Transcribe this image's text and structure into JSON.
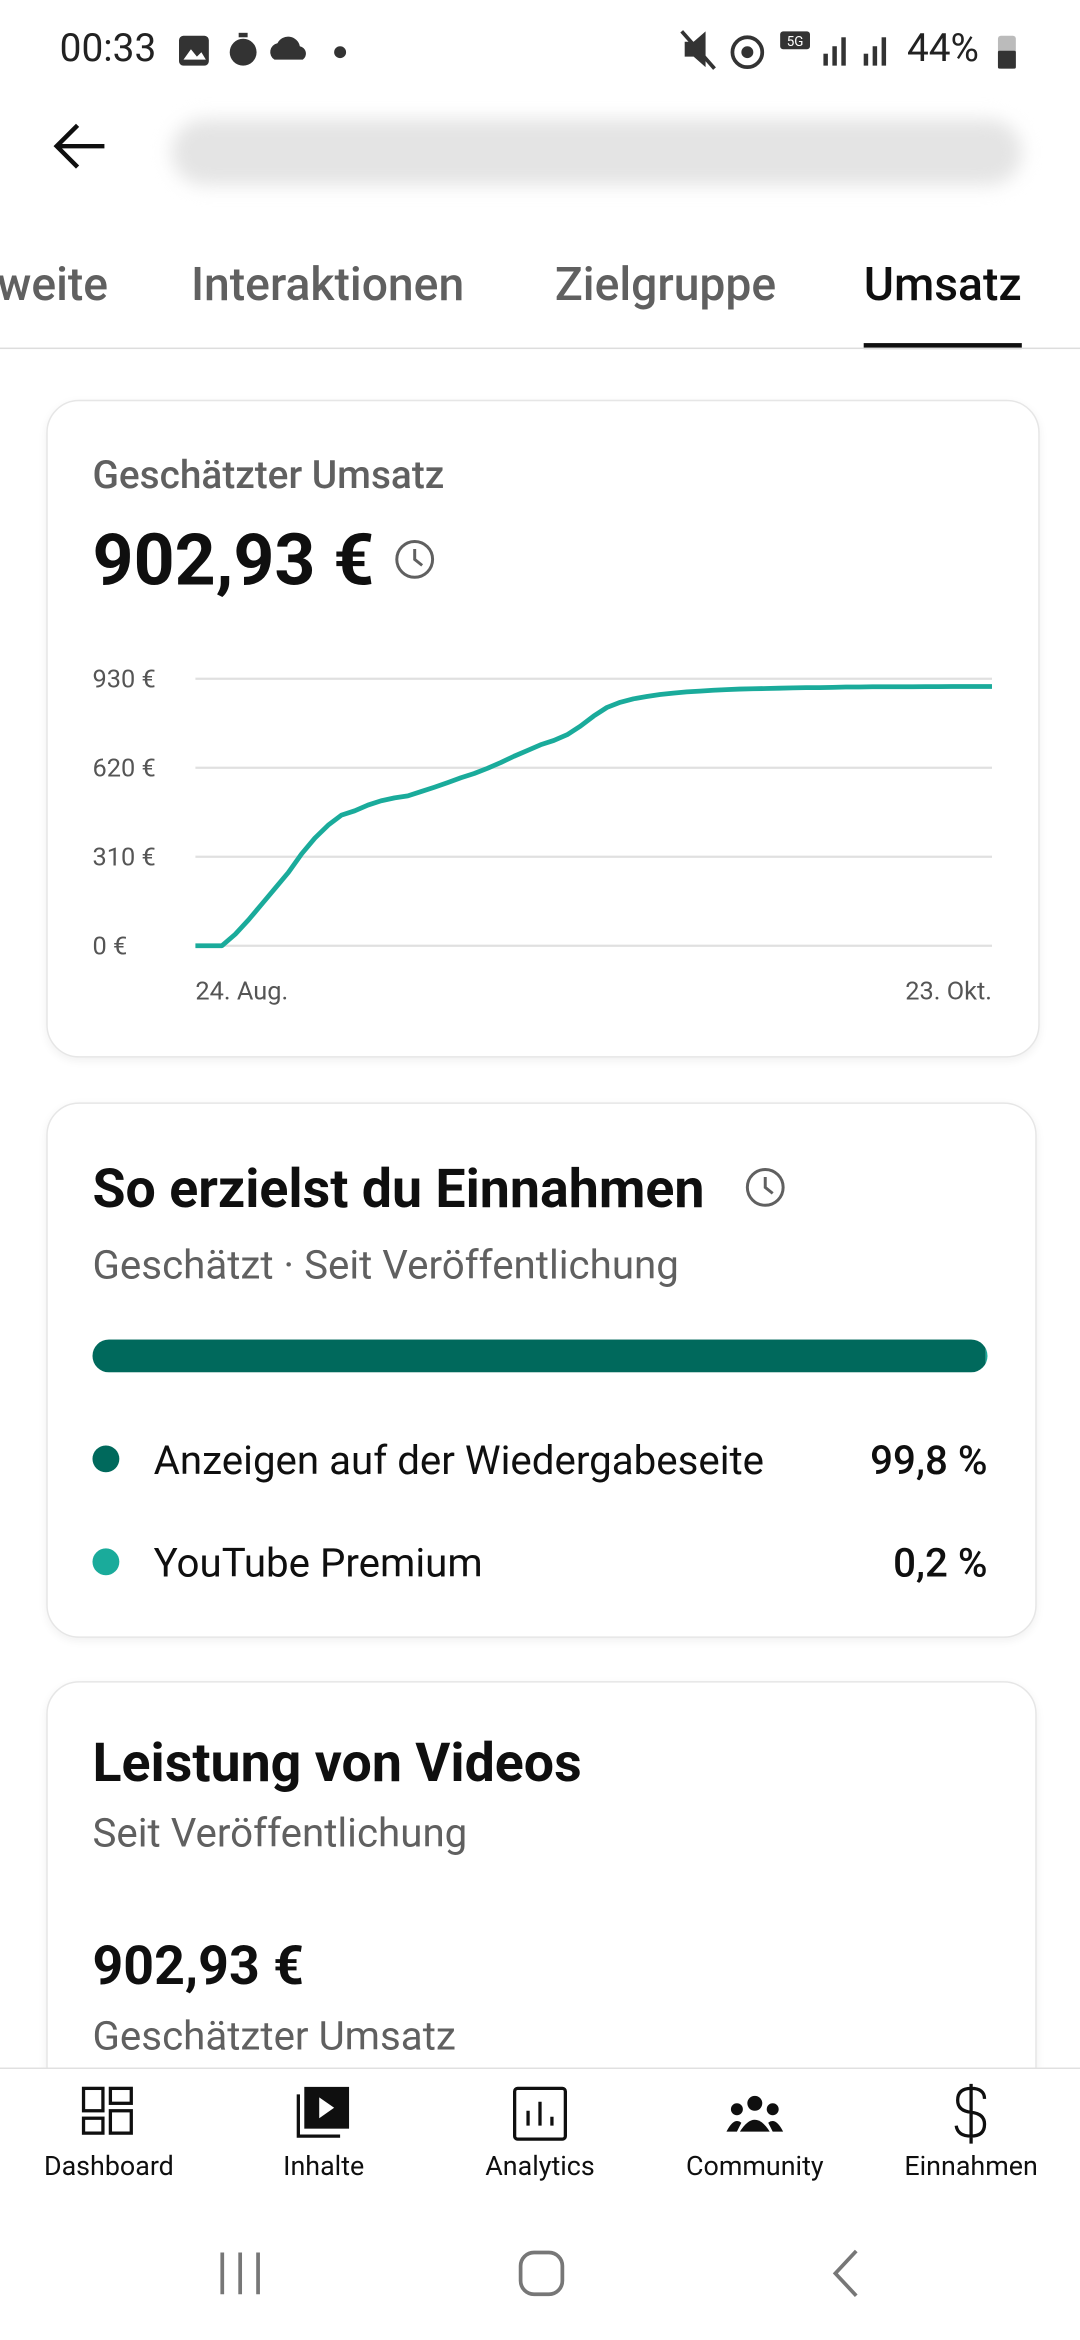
{
  "status_bar": {
    "time": "00:33",
    "battery": "44%"
  },
  "tabs": [
    "weite",
    "Interaktionen",
    "Zielgruppe",
    "Umsatz"
  ],
  "active_tab": 3,
  "revenue_card": {
    "title": "Geschätzter Umsatz",
    "total": "902,93 €",
    "chart": {
      "type": "line",
      "categories": [
        "24. Aug.",
        null,
        null,
        null,
        null,
        null,
        null,
        null,
        null,
        null,
        null,
        null,
        null,
        null,
        null,
        null,
        null,
        null,
        null,
        null,
        null,
        null,
        null,
        null,
        null,
        null,
        null,
        null,
        null,
        null,
        null,
        null,
        null,
        null,
        null,
        null,
        null,
        null,
        null,
        null,
        null,
        null,
        null,
        null,
        null,
        null,
        null,
        null,
        null,
        null,
        null,
        null,
        null,
        null,
        null,
        null,
        null,
        null,
        null,
        null,
        "23. Okt."
      ],
      "values": [
        0,
        0,
        0,
        40,
        90,
        145,
        200,
        255,
        320,
        375,
        420,
        455,
        470,
        490,
        505,
        515,
        522,
        537,
        552,
        568,
        585,
        600,
        618,
        638,
        660,
        680,
        700,
        715,
        735,
        765,
        800,
        830,
        848,
        860,
        868,
        875,
        880,
        884,
        887,
        890,
        892,
        894,
        895,
        896,
        897,
        898,
        899,
        899,
        900,
        901,
        901,
        902,
        902,
        902,
        902,
        902.5,
        902.5,
        902.9,
        902.9,
        902.93,
        902.93
      ],
      "color": "#1aab9b",
      "ylim": [
        0,
        930
      ],
      "yticks": [
        {
          "value": 0,
          "label": "0 €"
        },
        {
          "value": 310,
          "label": "310 €"
        },
        {
          "value": 620,
          "label": "620 €"
        },
        {
          "value": 930,
          "label": "930 €"
        }
      ],
      "grid": true
    }
  },
  "earnings_card": {
    "title": "So erzielst du Einnahmen",
    "subtitle": "Geschätzt · Seit Veröffentlichung",
    "sources": [
      {
        "name": "Anzeigen auf der Wiedergabeseite",
        "value": 99.8,
        "value_label": "99,8 %",
        "color": "#00695c"
      },
      {
        "name": "YouTube Premium",
        "value": 0.2,
        "value_label": "0,2 %",
        "color": "#1aab9b"
      }
    ]
  },
  "videos_card": {
    "title": "Leistung von Videos",
    "subtitle": "Seit Veröffentlichung",
    "total": "902,93 €",
    "total_label": "Geschätzter Umsatz"
  },
  "bottom_nav": [
    "Dashboard",
    "Inhalte",
    "Analytics",
    "Community",
    "Einnahmen"
  ]
}
